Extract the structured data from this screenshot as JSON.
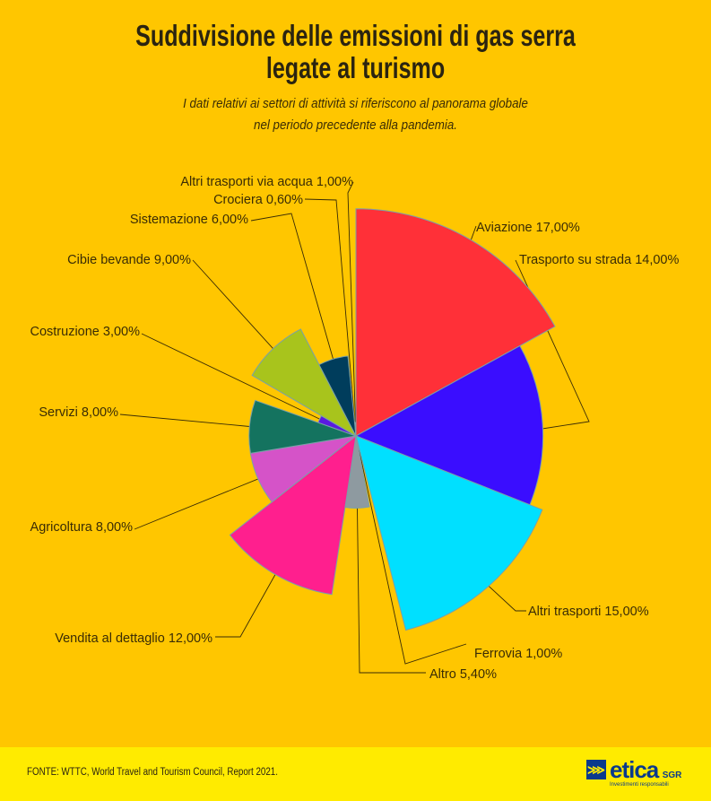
{
  "colors": {
    "background": "#FFC600",
    "footer": "#FFEB00",
    "text": "#3a2c05"
  },
  "header": {
    "title_line1": "Suddivisione delle emissioni di gas serra",
    "title_line2": "legate al turismo",
    "subtitle_line1": "I dati relativi ai settori di attività si riferiscono al panorama globale",
    "subtitle_line2": "nel periodo precedente alla pandemia."
  },
  "chart_data": {
    "type": "polar-area",
    "title": "Suddivisione delle emissioni di gas serra legate al turismo",
    "unit": "%",
    "categories": [
      "Aviazione",
      "Trasporto su strada",
      "Altri trasporti",
      "Ferrovia",
      "Altro",
      "Vendita al dettaglio",
      "Agricoltura",
      "Servizi",
      "Costruzione",
      "Cibie bevande",
      "Sistemazione",
      "Crociera",
      "Altri trasporti via acqua"
    ],
    "values": [
      17.0,
      14.0,
      15.0,
      1.0,
      5.4,
      12.0,
      8.0,
      8.0,
      3.0,
      9.0,
      6.0,
      0.6,
      1.0
    ],
    "labels": [
      "Aviazione 17,00%",
      "Trasporto su strada 14,00%",
      "Altri trasporti 15,00%",
      "Ferrovia 1,00%",
      "Altro 5,40%",
      "Vendita al dettaglio 12,00%",
      "Agricoltura 8,00%",
      "Servizi 8,00%",
      "Costruzione 3,00%",
      "Cibie bevande 9,00%",
      "Sistemazione 6,00%",
      "Crociera 0,60%",
      "Altri trasporti via acqua 1,00%"
    ],
    "colors": [
      "#FF3038",
      "#3A0DFF",
      "#00E0FF",
      "#3a5a80",
      "#8E9AA0",
      "#FF1F8E",
      "#D553C8",
      "#14735F",
      "#5A1AE0",
      "#A8C41C",
      "#003D5C",
      "#4a6a40",
      "#6a4a9a"
    ],
    "legend": "none"
  },
  "footer": {
    "source": "FONTE: WTTC, World Travel and Tourism Council, Report 2021.",
    "logo_word": "etica",
    "logo_sgr": "SGR",
    "logo_tagline": "Investimenti responsabili"
  }
}
